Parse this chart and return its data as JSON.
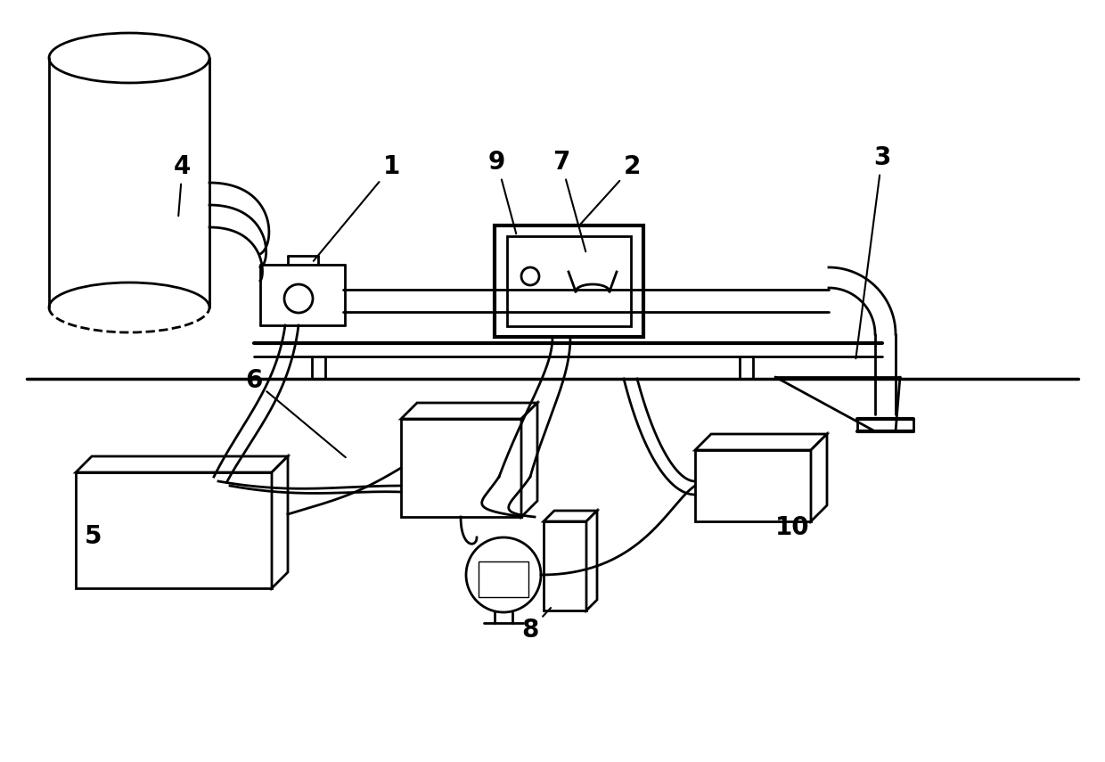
{
  "bg_color": "#ffffff",
  "line_color": "#000000",
  "lw": 2.0,
  "tlw": 3.0,
  "fig_width": 12.4,
  "fig_height": 8.55
}
